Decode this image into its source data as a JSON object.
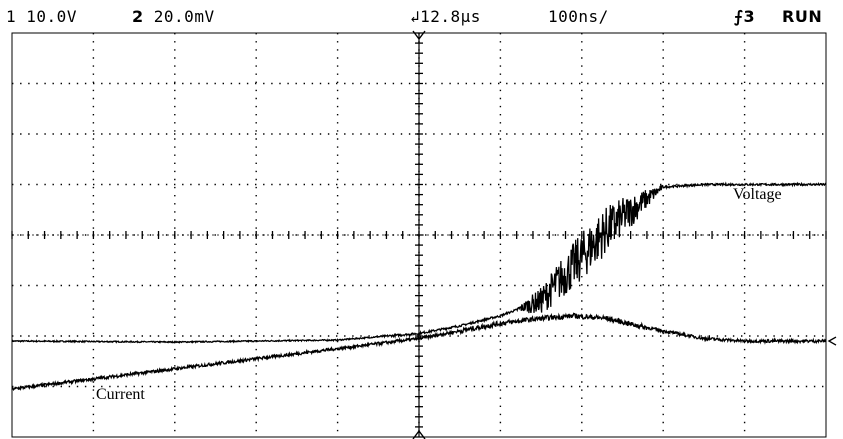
{
  "status_bar": {
    "channel1": {
      "num": "1",
      "scale": "10.0V"
    },
    "channel2": {
      "num": "2",
      "scale": "20.0",
      "unit": "mV"
    },
    "time_offset": "12.8",
    "time_offset_unit": "µs",
    "timebase": "100",
    "timebase_unit": "ns/",
    "trigger": {
      "source": "3",
      "icon": "rising-edge-trigger-icon"
    },
    "run_state": "RUN"
  },
  "chart_data": {
    "type": "line",
    "grid": {
      "on": true,
      "style": "dotted",
      "x_divisions": 10,
      "y_divisions": 8
    },
    "x_range": [
      0,
      10
    ],
    "y_range": [
      -4,
      4
    ],
    "annotations": [
      "Voltage",
      "Current"
    ],
    "series": [
      {
        "name": "Voltage",
        "noise": "high-during-transition",
        "x": [
          0,
          1,
          2,
          3,
          4,
          5,
          5.5,
          6,
          6.5,
          6.9,
          7.3,
          7.7,
          8,
          8.5,
          9,
          9.5,
          10
        ],
        "y": [
          -2.1,
          -2.11,
          -2.12,
          -2.1,
          -2.08,
          -1.95,
          -1.8,
          -1.6,
          -1.3,
          -0.6,
          0.1,
          0.6,
          0.95,
          1.0,
          1.0,
          1.0,
          1.0
        ]
      },
      {
        "name": "Current",
        "noise": "moderate",
        "x": [
          0,
          1,
          2,
          3,
          4,
          5,
          5.5,
          6,
          6.5,
          6.9,
          7.3,
          7.7,
          8,
          8.5,
          9,
          9.5,
          10
        ],
        "y": [
          -3.05,
          -2.85,
          -2.65,
          -2.45,
          -2.25,
          -2.05,
          -1.9,
          -1.75,
          -1.65,
          -1.6,
          -1.65,
          -1.8,
          -1.9,
          -2.05,
          -2.1,
          -2.1,
          -2.1
        ]
      }
    ],
    "colors": {
      "trace": "#000000",
      "grid": "#000000",
      "background": "#ffffff"
    }
  }
}
